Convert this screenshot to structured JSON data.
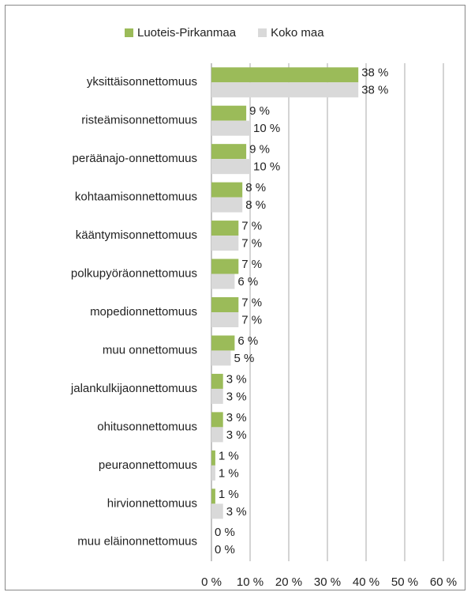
{
  "chart_data": {
    "type": "bar",
    "orientation": "horizontal",
    "categories": [
      "yksittäisonnettomuus",
      "risteämisonnettomuus",
      "peräänajo-onnettomuus",
      "kohtaamisonnettomuus",
      "kääntymisonnettomuus",
      "polkupyöräonnettomuus",
      "mopedionnettomuus",
      "muu onnettomuus",
      "jalankulkijaonnettomuus",
      "ohitusonnettomuus",
      "peuraonnettomuus",
      "hirvionnettomuus",
      "muu eläinonnettomuus"
    ],
    "series": [
      {
        "name": "Luoteis-Pirkanmaa",
        "color": "#9bbb59",
        "values": [
          38,
          9,
          9,
          8,
          7,
          7,
          7,
          6,
          3,
          3,
          1,
          1,
          0
        ],
        "value_labels": [
          "38 %",
          "9 %",
          "9 %",
          "8 %",
          "7 %",
          "7 %",
          "7 %",
          "6 %",
          "3 %",
          "3 %",
          "1 %",
          "1 %",
          "0 %"
        ]
      },
      {
        "name": "Koko maa",
        "color": "#d9d9d9",
        "values": [
          38,
          10,
          10,
          8,
          7,
          6,
          7,
          5,
          3,
          3,
          1,
          3,
          0
        ],
        "value_labels": [
          "38 %",
          "10 %",
          "10 %",
          "8 %",
          "7 %",
          "6 %",
          "7 %",
          "5 %",
          "3 %",
          "3 %",
          "1 %",
          "3 %",
          "0 %"
        ]
      }
    ],
    "xlim": [
      0,
      60
    ],
    "xticks": [
      {
        "value": 0,
        "label": "0 %"
      },
      {
        "value": 10,
        "label": "10 %"
      },
      {
        "value": 20,
        "label": "20 %"
      },
      {
        "value": 30,
        "label": "30 %"
      },
      {
        "value": 40,
        "label": "40 %"
      },
      {
        "value": 50,
        "label": "50 %"
      },
      {
        "value": 60,
        "label": "60 %"
      }
    ],
    "grid": true,
    "legend": "top"
  }
}
